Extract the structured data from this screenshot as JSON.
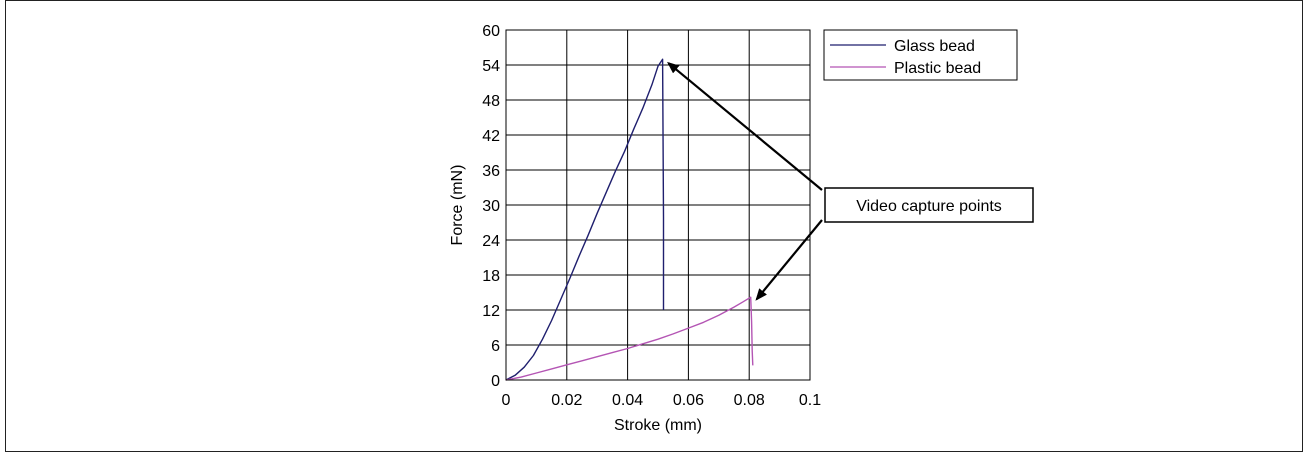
{
  "chart_data": {
    "type": "line",
    "xlabel": "Stroke (mm)",
    "ylabel": "Force (mN)",
    "xlim": [
      0,
      0.1
    ],
    "ylim": [
      0,
      60
    ],
    "xticks": [
      0,
      0.02,
      0.04,
      0.06,
      0.08,
      0.1
    ],
    "xtick_labels": [
      "0",
      "0.02",
      "0.04",
      "0.06",
      "0.08",
      "0.1"
    ],
    "yticks": [
      0,
      6,
      12,
      18,
      24,
      30,
      36,
      42,
      48,
      54,
      60
    ],
    "ytick_labels": [
      "0",
      "6",
      "12",
      "18",
      "24",
      "30",
      "36",
      "42",
      "48",
      "54",
      "60"
    ],
    "grid": true,
    "legend_position": "top-right (outside plot)",
    "series": [
      {
        "name": "Glass bead",
        "color": "#1f1f6e",
        "x": [
          0,
          0.003,
          0.006,
          0.009,
          0.012,
          0.015,
          0.018,
          0.021,
          0.024,
          0.027,
          0.03,
          0.033,
          0.036,
          0.039,
          0.042,
          0.045,
          0.048,
          0.05,
          0.0515,
          0.0518,
          0.0518
        ],
        "y": [
          0,
          0.8,
          2.2,
          4.2,
          7.0,
          10.2,
          13.8,
          17.4,
          21.2,
          24.8,
          28.6,
          32.2,
          35.8,
          39.2,
          43.0,
          46.6,
          50.6,
          53.8,
          55.0,
          28.0,
          12.0
        ]
      },
      {
        "name": "Plastic bead",
        "color": "#b455b4",
        "x": [
          0,
          0.005,
          0.01,
          0.015,
          0.02,
          0.025,
          0.03,
          0.035,
          0.04,
          0.045,
          0.05,
          0.055,
          0.06,
          0.065,
          0.07,
          0.075,
          0.078,
          0.0805,
          0.0808,
          0.081,
          0.0812
        ],
        "y": [
          0,
          0.5,
          1.2,
          1.9,
          2.6,
          3.3,
          4.0,
          4.7,
          5.4,
          6.2,
          7.0,
          7.9,
          8.9,
          9.9,
          11.1,
          12.5,
          13.4,
          14.2,
          10.0,
          5.0,
          2.5
        ]
      }
    ],
    "annotations": [
      {
        "text": "Video capture points",
        "points_to": [
          {
            "x": 0.0515,
            "y": 55.0
          },
          {
            "x": 0.0805,
            "y": 14.2
          }
        ]
      }
    ]
  },
  "legend": {
    "items": [
      {
        "label": "Glass bead",
        "color": "#1f1f6e"
      },
      {
        "label": "Plastic bead",
        "color": "#b455b4"
      }
    ]
  },
  "annotation": {
    "label": "Video capture points"
  }
}
